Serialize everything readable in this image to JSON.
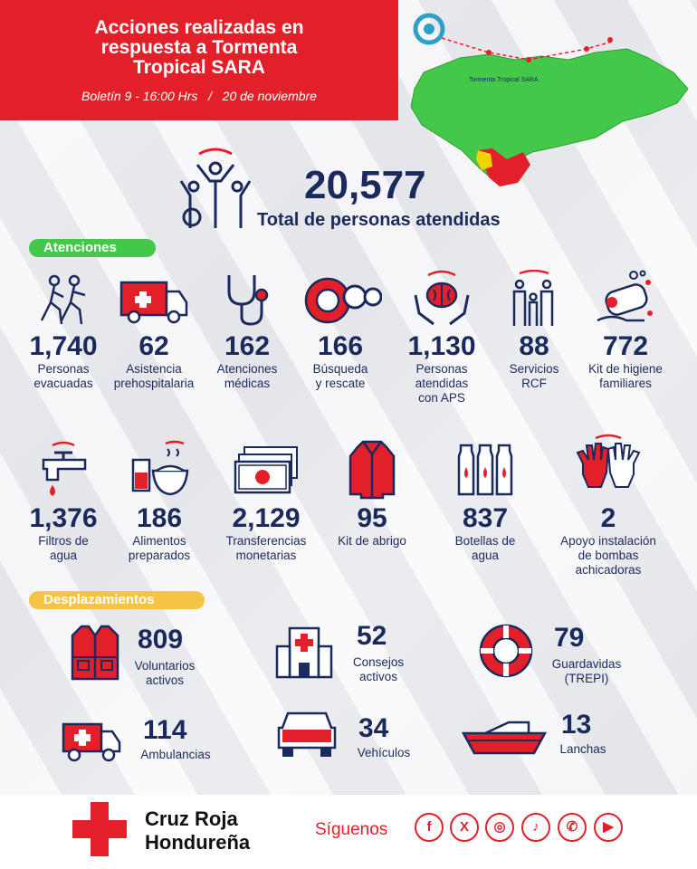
{
  "header": {
    "title_line1": "Acciones realizadas en",
    "title_line2": "respuesta a Tormenta",
    "title_line3": "Tropical SARA",
    "bulletin": "Boletín 9 - 16:00 Hrs",
    "separator": "/",
    "date": "20 de noviembre"
  },
  "map": {
    "label": "Tormenta Tropical SARA",
    "colors": {
      "land": "#43c84a",
      "alert_red": "#e3202a",
      "alert_yellow": "#f2d200"
    }
  },
  "hero": {
    "total": "20,577",
    "label": "Total de personas atendidas"
  },
  "sections": {
    "atenciones": "Atenciones",
    "desplazamientos": "Desplazamientos"
  },
  "atenciones_row1": [
    {
      "value": "1,740",
      "l1": "Personas",
      "l2": "evacuadas",
      "l3": "",
      "icon": "running-people-icon"
    },
    {
      "value": "62",
      "l1": "Asistencia",
      "l2": "prehospitalaria",
      "l3": "",
      "icon": "ambulance-icon"
    },
    {
      "value": "162",
      "l1": "Atenciones",
      "l2": "médicas",
      "l3": "",
      "icon": "stethoscope-icon"
    },
    {
      "value": "166",
      "l1": "Búsqueda",
      "l2": "y rescate",
      "l3": "",
      "icon": "lifebuoy-binoculars-icon"
    },
    {
      "value": "1,130",
      "l1": "Personas",
      "l2": "atendidas",
      "l3": "con APS",
      "icon": "brain-hands-icon"
    },
    {
      "value": "88",
      "l1": "Servicios",
      "l2": "RCF",
      "l3": "",
      "icon": "family-icon"
    },
    {
      "value": "772",
      "l1": "Kit de higiene",
      "l2": "familiares",
      "l3": "",
      "icon": "soap-icon"
    }
  ],
  "atenciones_row2": [
    {
      "value": "1,376",
      "l1": "Filtros de",
      "l2": "agua",
      "l3": "",
      "icon": "water-tap-icon"
    },
    {
      "value": "186",
      "l1": "Alimentos",
      "l2": "preparados",
      "l3": "",
      "icon": "food-bowl-icon"
    },
    {
      "value": "2,129",
      "l1": "Transferencias",
      "l2": "monetarias",
      "l3": "",
      "icon": "cash-icon"
    },
    {
      "value": "95",
      "l1": "Kit de abrigo",
      "l2": "",
      "l3": "",
      "icon": "coat-icon"
    },
    {
      "value": "837",
      "l1": "Botellas de",
      "l2": "agua",
      "l3": "",
      "icon": "water-bottles-icon"
    },
    {
      "value": "2",
      "l1": "Apoyo instalación",
      "l2": "de bombas",
      "l3": "achicadoras",
      "icon": "gloves-icon"
    }
  ],
  "desplazamientos": [
    {
      "value": "809",
      "l1": "Voluntarios",
      "l2": "activos",
      "icon": "vest-icon"
    },
    {
      "value": "52",
      "l1": "Consejos",
      "l2": "activos",
      "icon": "hospital-building-icon"
    },
    {
      "value": "79",
      "l1": "Guardavidas",
      "l2": "(TREPI)",
      "icon": "lifebuoy-icon"
    },
    {
      "value": "114",
      "l1": "Ambulancias",
      "l2": "",
      "icon": "ambulance-icon"
    },
    {
      "value": "34",
      "l1": "Vehículos",
      "l2": "",
      "icon": "truck-icon"
    },
    {
      "value": "13",
      "l1": "Lanchas",
      "l2": "",
      "icon": "boat-icon"
    }
  ],
  "footer": {
    "org_line1": "Cruz Roja",
    "org_line2": "Hondureña",
    "follow": "Síguenos",
    "social": [
      {
        "glyph": "f",
        "icon": "facebook-icon"
      },
      {
        "glyph": "X",
        "icon": "x-icon"
      },
      {
        "glyph": "◎",
        "icon": "instagram-icon"
      },
      {
        "glyph": "♪",
        "icon": "tiktok-icon"
      },
      {
        "glyph": "✆",
        "icon": "whatsapp-icon"
      },
      {
        "glyph": "▶",
        "icon": "youtube-icon"
      }
    ]
  },
  "colors": {
    "red": "#e3202a",
    "navy": "#1b2a5c",
    "green": "#43c84a",
    "yellow": "#f6c444"
  }
}
